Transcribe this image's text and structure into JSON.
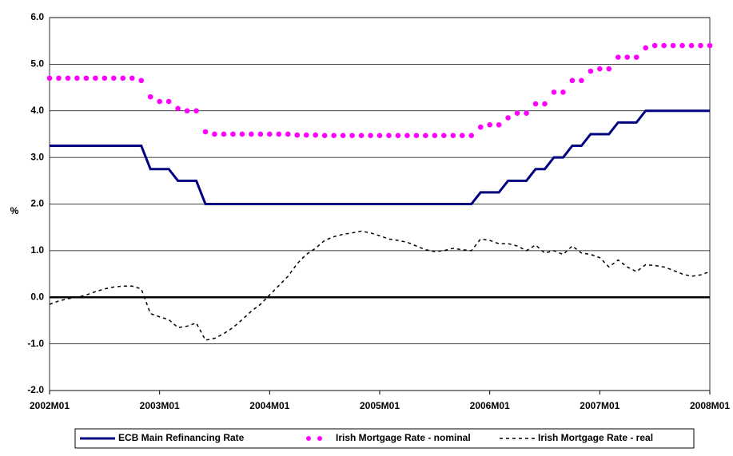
{
  "chart_data": {
    "type": "line",
    "y_label": "%",
    "categories": [
      "2002M01",
      null,
      null,
      null,
      null,
      null,
      null,
      null,
      null,
      null,
      null,
      null,
      "2003M01",
      null,
      null,
      null,
      null,
      null,
      null,
      null,
      null,
      null,
      null,
      null,
      "2004M01",
      null,
      null,
      null,
      null,
      null,
      null,
      null,
      null,
      null,
      null,
      null,
      "2005M01",
      null,
      null,
      null,
      null,
      null,
      null,
      null,
      null,
      null,
      null,
      null,
      "2006M01",
      null,
      null,
      null,
      null,
      null,
      null,
      null,
      null,
      null,
      null,
      null,
      "2007M01",
      null,
      null,
      null,
      null,
      null,
      null,
      null,
      null,
      null,
      null,
      null,
      "2008M01"
    ],
    "ylim": [
      -2,
      6
    ],
    "yticks": [
      {
        "value": -2,
        "label": "-2.0"
      },
      {
        "value": -1,
        "label": "-1.0"
      },
      {
        "value": 0,
        "label": "0.0"
      },
      {
        "value": 1,
        "label": "1.0"
      },
      {
        "value": 2,
        "label": "2.0"
      },
      {
        "value": 3,
        "label": "3.0"
      },
      {
        "value": 4,
        "label": "4.0"
      },
      {
        "value": 5,
        "label": "5.0"
      },
      {
        "value": 6,
        "label": "6.0"
      }
    ],
    "grid": true,
    "legend": "bottom",
    "series": [
      {
        "name": "ECB Main Refinancing Rate",
        "color": "#000080",
        "style": "solid",
        "values": [
          3.25,
          3.25,
          3.25,
          3.25,
          3.25,
          3.25,
          3.25,
          3.25,
          3.25,
          3.25,
          3.25,
          2.75,
          2.75,
          2.75,
          2.5,
          2.5,
          2.5,
          2,
          2,
          2,
          2,
          2,
          2,
          2,
          2,
          2,
          2,
          2,
          2,
          2,
          2,
          2,
          2,
          2,
          2,
          2,
          2,
          2,
          2,
          2,
          2,
          2,
          2,
          2,
          2,
          2,
          2,
          2.25,
          2.25,
          2.25,
          2.5,
          2.5,
          2.5,
          2.75,
          2.75,
          3,
          3,
          3.25,
          3.25,
          3.5,
          3.5,
          3.5,
          3.75,
          3.75,
          3.75,
          4,
          4,
          4,
          4,
          4,
          4,
          4,
          4
        ]
      },
      {
        "name": "Irish Mortgage Rate - nominal",
        "color": "#ff00ff",
        "style": "dots",
        "values": [
          4.7,
          4.7,
          4.7,
          4.7,
          4.7,
          4.7,
          4.7,
          4.7,
          4.7,
          4.7,
          4.65,
          4.3,
          4.2,
          4.2,
          4.05,
          4,
          4,
          3.55,
          3.5,
          3.5,
          3.5,
          3.5,
          3.5,
          3.5,
          3.5,
          3.5,
          3.5,
          3.48,
          3.48,
          3.48,
          3.47,
          3.47,
          3.47,
          3.47,
          3.47,
          3.47,
          3.47,
          3.47,
          3.47,
          3.47,
          3.47,
          3.47,
          3.47,
          3.47,
          3.47,
          3.47,
          3.47,
          3.65,
          3.7,
          3.7,
          3.85,
          3.95,
          3.95,
          4.15,
          4.15,
          4.4,
          4.4,
          4.65,
          4.65,
          4.85,
          4.9,
          4.9,
          5.15,
          5.15,
          5.15,
          5.35,
          5.4,
          5.4,
          5.4,
          5.4,
          5.4,
          5.4,
          5.4
        ]
      },
      {
        "name": "Irish Mortgage Rate - real",
        "color": "#000000",
        "style": "dashed",
        "values": [
          -0.15,
          -0.08,
          -0.03,
          0,
          0.05,
          0.12,
          0.18,
          0.22,
          0.24,
          0.24,
          0.18,
          -0.35,
          -0.42,
          -0.48,
          -0.65,
          -0.62,
          -0.55,
          -0.92,
          -0.88,
          -0.78,
          -0.65,
          -0.48,
          -0.3,
          -0.15,
          0.05,
          0.25,
          0.45,
          0.72,
          0.92,
          1.05,
          1.22,
          1.3,
          1.35,
          1.38,
          1.42,
          1.38,
          1.32,
          1.25,
          1.22,
          1.18,
          1.1,
          1.02,
          0.98,
          1,
          1.05,
          1.02,
          1,
          1.25,
          1.22,
          1.15,
          1.15,
          1.1,
          1,
          1.12,
          0.95,
          1,
          0.92,
          1.1,
          0.95,
          0.92,
          0.85,
          0.65,
          0.8,
          0.65,
          0.55,
          0.7,
          0.68,
          0.65,
          0.58,
          0.5,
          0.45,
          0.48,
          0.55
        ]
      }
    ]
  }
}
